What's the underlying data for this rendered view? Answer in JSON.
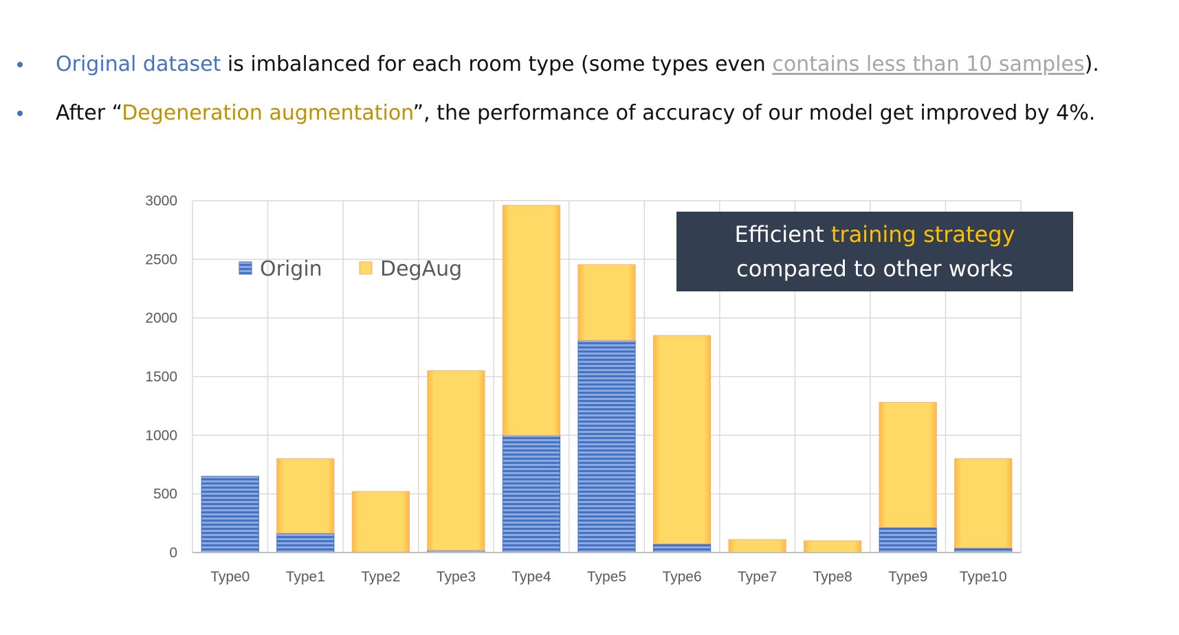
{
  "bullets": {
    "b1": {
      "hl": "Original dataset",
      "mid": " is imbalanced for each room type (some types even ",
      "grey": "contains less than 10 samples",
      "end": ")."
    },
    "b2": {
      "pre": "After “",
      "hl": "Degeneration augmentation",
      "end": "”, the performance of accuracy of our model get improved by 4%."
    }
  },
  "callout": {
    "w1": "Efficient ",
    "hl": "training strategy",
    "line2": "compared to other works"
  },
  "colors": {
    "origin": "#4472C4",
    "degaug": "#FFC000",
    "grid": "#D9D9D9",
    "accent_blue": "#4472C4",
    "accent_gold": "#BF9000",
    "callout_bg": "#333F50"
  },
  "chart_data": {
    "type": "bar",
    "stacked": true,
    "categories": [
      "Type0",
      "Type1",
      "Type2",
      "Type3",
      "Type4",
      "Type5",
      "Type6",
      "Type7",
      "Type8",
      "Type9",
      "Type10"
    ],
    "series": [
      {
        "name": "Origin",
        "values": [
          650,
          165,
          5,
          20,
          1000,
          1810,
          75,
          2,
          2,
          215,
          40
        ]
      },
      {
        "name": "DegAug",
        "values": [
          0,
          635,
          515,
          1530,
          1960,
          645,
          1775,
          108,
          98,
          1065,
          760
        ]
      }
    ],
    "yticks": [
      "0",
      "500",
      "1000",
      "1500",
      "2000",
      "2500",
      "3000"
    ],
    "ylim": [
      0,
      3000
    ],
    "grid": true,
    "legend_position": "top-left"
  }
}
